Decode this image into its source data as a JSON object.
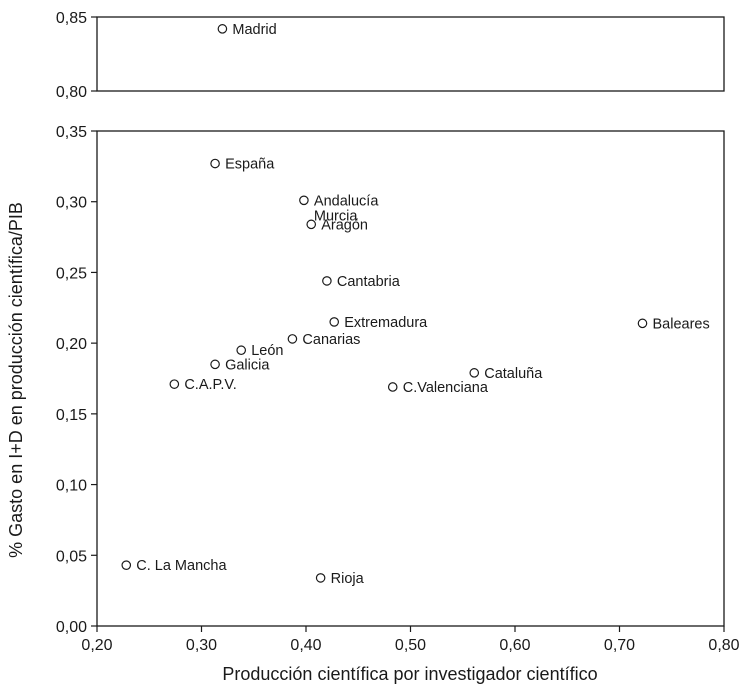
{
  "chart_data": {
    "type": "scatter",
    "xlabel": "Producción científica por investigador científico",
    "ylabel": "% Gasto en I+D en producción científica/PIB",
    "xlim": [
      0.2,
      0.8
    ],
    "ylim_upper_panel": [
      0.8,
      0.85
    ],
    "ylim_lower_panel": [
      0.0,
      0.35
    ],
    "x_ticks": [
      "0,20",
      "0,30",
      "0,40",
      "0,50",
      "0,60",
      "0,70",
      "0,80"
    ],
    "y_ticks_upper": [
      "0,85",
      "0,80"
    ],
    "y_ticks_lower": [
      "0,35",
      "0,30",
      "0,25",
      "0,20",
      "0,15",
      "0,10",
      "0,05",
      "0,00"
    ],
    "grid": false,
    "points": [
      {
        "label": "Madrid",
        "x": 0.32,
        "y": 0.842
      },
      {
        "label": "España",
        "x": 0.313,
        "y": 0.327
      },
      {
        "label": "Andalucía",
        "x": 0.398,
        "y": 0.301
      },
      {
        "label": "Murcia",
        "x": 0.398,
        "y": 0.301
      },
      {
        "label": "Aragón",
        "x": 0.405,
        "y": 0.284
      },
      {
        "label": "Cantabria",
        "x": 0.42,
        "y": 0.244
      },
      {
        "label": "Extremadura",
        "x": 0.427,
        "y": 0.215
      },
      {
        "label": "Canarias",
        "x": 0.387,
        "y": 0.203
      },
      {
        "label": "León",
        "x": 0.338,
        "y": 0.195
      },
      {
        "label": "Galicia",
        "x": 0.313,
        "y": 0.185
      },
      {
        "label": "C.A.P.V.",
        "x": 0.274,
        "y": 0.171
      },
      {
        "label": "Cataluña",
        "x": 0.561,
        "y": 0.179
      },
      {
        "label": "C.Valenciana",
        "x": 0.483,
        "y": 0.169
      },
      {
        "label": "Baleares",
        "x": 0.722,
        "y": 0.214
      },
      {
        "label": "C. La Mancha",
        "x": 0.228,
        "y": 0.043
      },
      {
        "label": "Rioja",
        "x": 0.414,
        "y": 0.034
      }
    ]
  }
}
